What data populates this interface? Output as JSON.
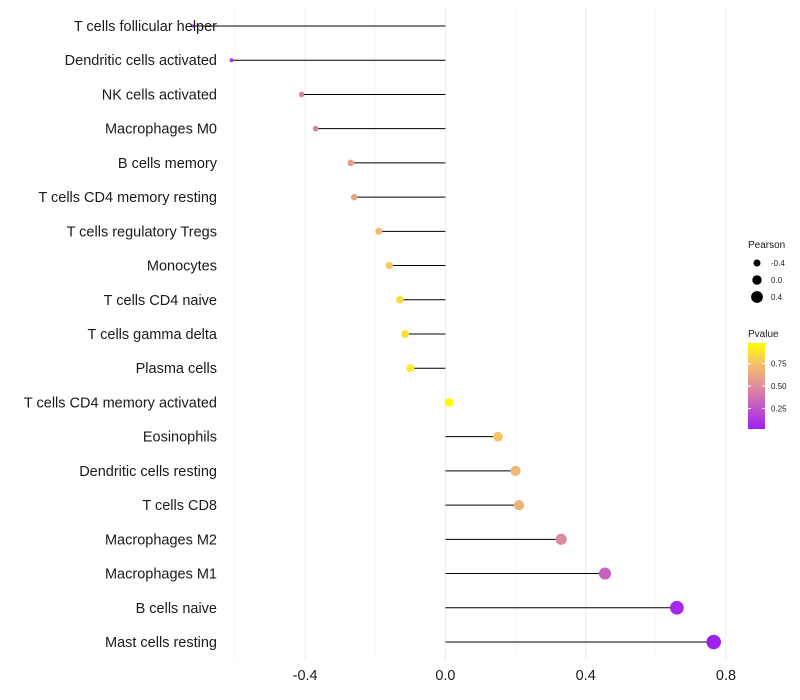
{
  "chart_data": {
    "type": "scatter",
    "subtype": "lollipop",
    "title": "",
    "xlabel": "",
    "ylabel": "",
    "xlim": [
      -0.62,
      0.84
    ],
    "x_ticks": [
      -0.4,
      0.0,
      0.4,
      0.8
    ],
    "x_tick_labels": [
      "-0.4",
      "0.0",
      "0.4",
      "0.8"
    ],
    "grid": true,
    "categories": [
      "T cells follicular helper",
      "Dendritic cells activated",
      "NK cells activated",
      "Macrophages M0",
      "B cells memory",
      "T cells CD4 memory resting",
      "T cells regulatory  Tregs ",
      "Monocytes",
      "T cells CD4 naive",
      "T cells gamma delta",
      "Plasma cells",
      "T cells CD4 memory activated",
      "Eosinophils",
      "Dendritic cells resting",
      "T cells CD8",
      "Macrophages M2",
      "Macrophages M1",
      "B cells naive",
      "Mast cells resting"
    ],
    "pearson": [
      -0.72,
      -0.61,
      -0.41,
      -0.37,
      -0.27,
      -0.26,
      -0.19,
      -0.16,
      -0.13,
      -0.115,
      -0.1,
      0.01,
      0.15,
      0.2,
      0.21,
      0.33,
      0.455,
      0.66,
      0.765
    ],
    "pvalue": [
      0.03,
      0.1,
      0.42,
      0.45,
      0.57,
      0.6,
      0.72,
      0.78,
      0.85,
      0.87,
      0.9,
      0.98,
      0.76,
      0.7,
      0.67,
      0.48,
      0.3,
      0.06,
      0.02
    ],
    "legend_size": {
      "title": "Pearson",
      "labels": [
        "-0.4",
        "0.0",
        "0.4"
      ],
      "values": [
        -0.4,
        0.0,
        0.4
      ]
    },
    "legend_color": {
      "title": "Pvalue",
      "labels": [
        "0.75",
        "0.50",
        "0.25"
      ],
      "values": [
        0.75,
        0.5,
        0.25
      ],
      "range": [
        0.02,
        0.98
      ],
      "low_color": "#a020f0",
      "high_color": "#ffff00"
    },
    "legend_position": "right"
  }
}
